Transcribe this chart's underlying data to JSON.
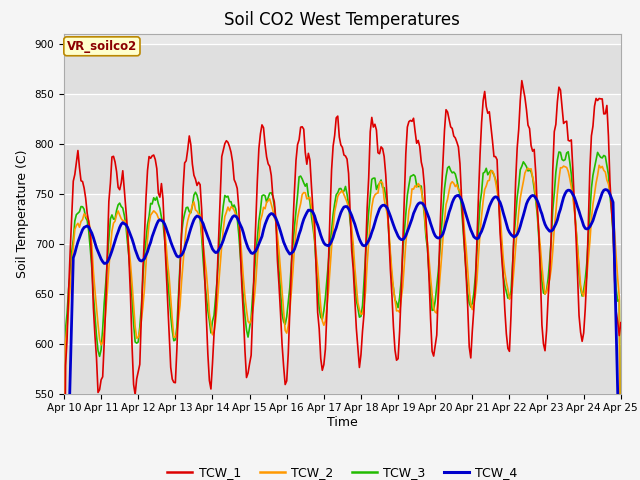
{
  "title": "Soil CO2 West Temperatures",
  "xlabel": "Time",
  "ylabel": "Soil Temperature (C)",
  "ylim": [
    550,
    910
  ],
  "bg_color": "#e8e8e8",
  "fig_color": "#f5f5f5",
  "series_colors": {
    "TCW_1": "#dd0000",
    "TCW_2": "#ff9900",
    "TCW_3": "#22bb00",
    "TCW_4": "#0000cc"
  },
  "annotation_text": "VR_soilco2",
  "annotation_color": "#8B0000",
  "annotation_bg": "#ffffcc",
  "annotation_edge": "#bb8800",
  "xtick_labels": [
    "Apr 10",
    "Apr 11",
    "Apr 12",
    "Apr 13",
    "Apr 14",
    "Apr 15",
    "Apr 16",
    "Apr 17",
    "Apr 18",
    "Apr 19",
    "Apr 20",
    "Apr 21",
    "Apr 22",
    "Apr 23",
    "Apr 24",
    "Apr 25"
  ],
  "ytick_values": [
    550,
    600,
    650,
    700,
    750,
    800,
    850,
    900
  ],
  "title_fontsize": 12,
  "axis_label_fontsize": 9,
  "tick_fontsize": 7.5,
  "legend_fontsize": 9,
  "line_widths": {
    "TCW_1": 1.2,
    "TCW_2": 1.2,
    "TCW_3": 1.2,
    "TCW_4": 2.0
  }
}
